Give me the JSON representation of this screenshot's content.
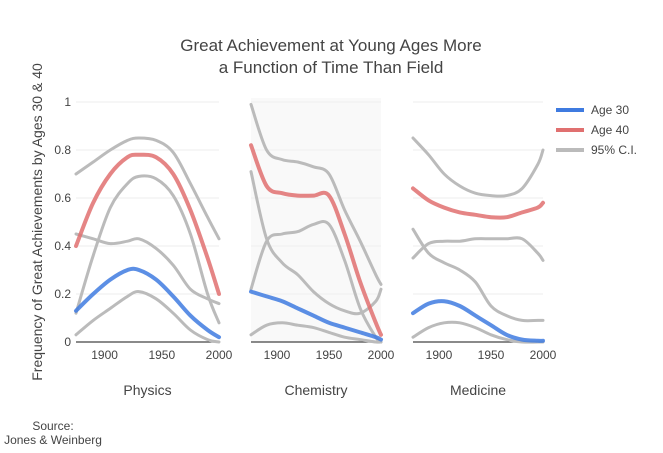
{
  "chart_data": {
    "type": "line",
    "title_lines": [
      "Great Achievement at Young Ages More",
      "a Function of Time Than Field"
    ],
    "ylabel": "Frequency of Great Achievements by Ages 30 & 40",
    "ylim": [
      0,
      1
    ],
    "yticks": [
      "0",
      "0.2",
      "0.4",
      "0.6",
      "0.8",
      "1"
    ],
    "xlim": [
      1875,
      2000
    ],
    "xticks": [
      1900,
      1950,
      2000
    ],
    "grid": true,
    "legend_position": "top-right",
    "legend": [
      {
        "name": "Age 30",
        "color": "#3f7be0"
      },
      {
        "name": "Age 40",
        "color": "#e07070"
      },
      {
        "name": "95% C.I.",
        "color": "#bbbbbb"
      }
    ],
    "panels": [
      {
        "label": "Physics",
        "series": [
          {
            "name": "Age 30",
            "x": [
              1875,
              1890,
              1905,
              1920,
              1930,
              1945,
              1960,
              1975,
              1990,
              2000
            ],
            "y": [
              0.13,
              0.2,
              0.26,
              0.3,
              0.3,
              0.26,
              0.19,
              0.11,
              0.05,
              0.02
            ]
          },
          {
            "name": "Age 40",
            "x": [
              1875,
              1890,
              1905,
              1920,
              1930,
              1945,
              1960,
              1975,
              1990,
              2000
            ],
            "y": [
              0.4,
              0.58,
              0.7,
              0.77,
              0.78,
              0.77,
              0.7,
              0.55,
              0.35,
              0.2
            ]
          },
          {
            "name": "95% C.I.",
            "role": "upper",
            "group": "age40",
            "x": [
              1875,
              1890,
              1905,
              1920,
              1930,
              1945,
              1960,
              1975,
              1990,
              2000
            ],
            "y": [
              0.7,
              0.75,
              0.8,
              0.84,
              0.85,
              0.84,
              0.79,
              0.66,
              0.52,
              0.43
            ]
          },
          {
            "name": "95% C.I.",
            "role": "lower",
            "group": "age40",
            "x": [
              1875,
              1890,
              1905,
              1920,
              1930,
              1945,
              1960,
              1975,
              1990,
              2000
            ],
            "y": [
              0.12,
              0.36,
              0.56,
              0.66,
              0.69,
              0.68,
              0.61,
              0.45,
              0.2,
              0.08
            ]
          },
          {
            "name": "95% C.I.",
            "role": "upper",
            "group": "age30",
            "x": [
              1875,
              1890,
              1905,
              1920,
              1930,
              1945,
              1960,
              1975,
              1990,
              2000
            ],
            "y": [
              0.45,
              0.43,
              0.41,
              0.42,
              0.43,
              0.39,
              0.32,
              0.22,
              0.18,
              0.16
            ]
          },
          {
            "name": "95% C.I.",
            "role": "lower",
            "group": "age30",
            "x": [
              1875,
              1890,
              1905,
              1920,
              1930,
              1945,
              1960,
              1975,
              1990,
              2000
            ],
            "y": [
              0.03,
              0.09,
              0.14,
              0.19,
              0.21,
              0.18,
              0.12,
              0.05,
              0.01,
              0.0
            ]
          }
        ]
      },
      {
        "label": "Chemistry",
        "series": [
          {
            "name": "Age 30",
            "x": [
              1875,
              1890,
              1905,
              1920,
              1935,
              1950,
              1965,
              1980,
              1995,
              2000
            ],
            "y": [
              0.21,
              0.19,
              0.17,
              0.14,
              0.11,
              0.08,
              0.06,
              0.04,
              0.02,
              0.01
            ]
          },
          {
            "name": "Age 40",
            "x": [
              1875,
              1890,
              1905,
              1920,
              1935,
              1950,
              1965,
              1980,
              1995,
              2000
            ],
            "y": [
              0.82,
              0.65,
              0.62,
              0.61,
              0.61,
              0.61,
              0.45,
              0.25,
              0.08,
              0.03
            ]
          },
          {
            "name": "95% C.I.",
            "role": "upper",
            "group": "age40",
            "x": [
              1875,
              1890,
              1905,
              1920,
              1935,
              1950,
              1965,
              1980,
              1995,
              2000
            ],
            "y": [
              0.99,
              0.8,
              0.76,
              0.75,
              0.73,
              0.7,
              0.55,
              0.42,
              0.28,
              0.24
            ]
          },
          {
            "name": "95% C.I.",
            "role": "lower",
            "group": "age40",
            "x": [
              1875,
              1890,
              1905,
              1920,
              1935,
              1950,
              1965,
              1980,
              1995,
              2000
            ],
            "y": [
              0.22,
              0.42,
              0.45,
              0.46,
              0.49,
              0.49,
              0.34,
              0.14,
              0.02,
              0.0
            ]
          },
          {
            "name": "95% C.I.",
            "role": "upper",
            "group": "age30",
            "x": [
              1875,
              1890,
              1905,
              1920,
              1935,
              1950,
              1965,
              1980,
              1995,
              2000
            ],
            "y": [
              0.71,
              0.43,
              0.33,
              0.28,
              0.21,
              0.16,
              0.13,
              0.12,
              0.17,
              0.22
            ]
          },
          {
            "name": "95% C.I.",
            "role": "lower",
            "group": "age30",
            "x": [
              1875,
              1890,
              1905,
              1920,
              1935,
              1950,
              1965,
              1980,
              1995,
              2000
            ],
            "y": [
              0.03,
              0.07,
              0.08,
              0.07,
              0.06,
              0.04,
              0.02,
              0.01,
              0.0,
              0.0
            ]
          }
        ]
      },
      {
        "label": "Medicine",
        "series": [
          {
            "name": "Age 30",
            "x": [
              1875,
              1890,
              1905,
              1920,
              1935,
              1950,
              1965,
              1980,
              1995,
              2000
            ],
            "y": [
              0.12,
              0.16,
              0.17,
              0.15,
              0.11,
              0.07,
              0.03,
              0.01,
              0.005,
              0.005
            ]
          },
          {
            "name": "Age 40",
            "x": [
              1875,
              1890,
              1905,
              1920,
              1935,
              1950,
              1965,
              1980,
              1995,
              2000
            ],
            "y": [
              0.64,
              0.59,
              0.56,
              0.54,
              0.53,
              0.52,
              0.52,
              0.54,
              0.56,
              0.58
            ]
          },
          {
            "name": "95% C.I.",
            "role": "upper",
            "group": "age40",
            "x": [
              1875,
              1890,
              1905,
              1920,
              1935,
              1950,
              1965,
              1980,
              1995,
              2000
            ],
            "y": [
              0.85,
              0.78,
              0.7,
              0.65,
              0.62,
              0.61,
              0.61,
              0.64,
              0.74,
              0.8
            ]
          },
          {
            "name": "95% C.I.",
            "role": "lower",
            "group": "age40",
            "x": [
              1875,
              1890,
              1905,
              1920,
              1935,
              1950,
              1965,
              1980,
              1995,
              2000
            ],
            "y": [
              0.35,
              0.41,
              0.42,
              0.42,
              0.43,
              0.43,
              0.43,
              0.43,
              0.37,
              0.34
            ]
          },
          {
            "name": "95% C.I.",
            "role": "upper",
            "group": "age30",
            "x": [
              1875,
              1890,
              1905,
              1920,
              1935,
              1950,
              1965,
              1980,
              1995,
              2000
            ],
            "y": [
              0.47,
              0.37,
              0.33,
              0.3,
              0.25,
              0.15,
              0.11,
              0.09,
              0.09,
              0.09
            ]
          },
          {
            "name": "95% C.I.",
            "role": "lower",
            "group": "age30",
            "x": [
              1875,
              1890,
              1905,
              1920,
              1935,
              1950,
              1965,
              1980,
              1995,
              2000
            ],
            "y": [
              0.02,
              0.06,
              0.08,
              0.08,
              0.06,
              0.03,
              0.01,
              0.0,
              0.0,
              0.0
            ]
          }
        ]
      }
    ]
  },
  "source": {
    "label": "Source:",
    "text": "Jones & Weinberg"
  }
}
